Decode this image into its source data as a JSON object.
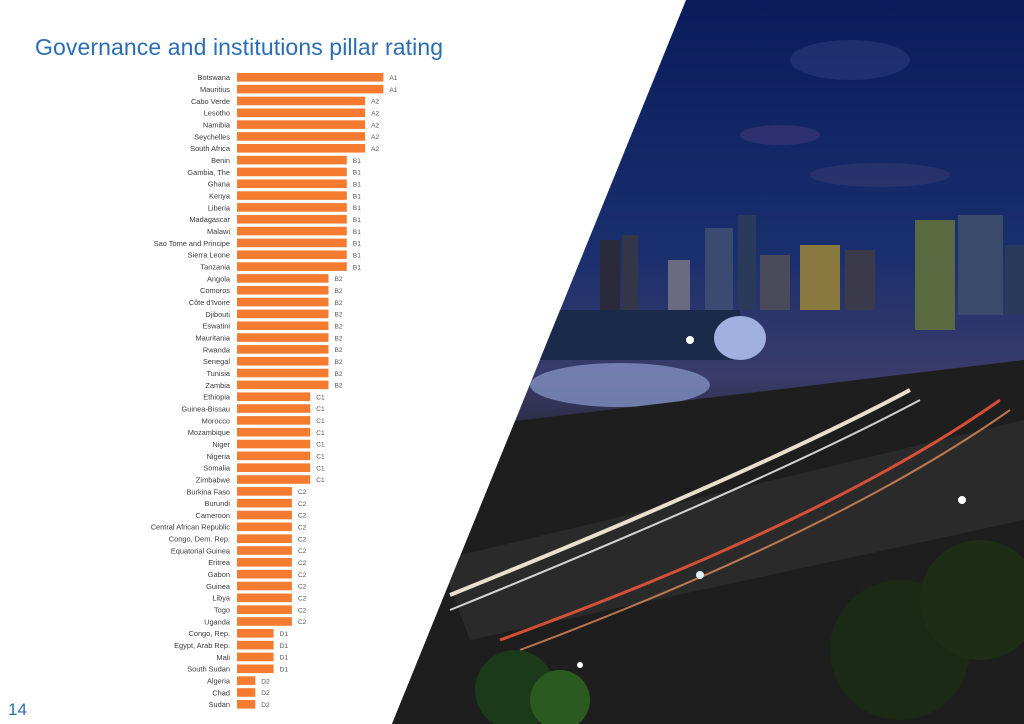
{
  "page": {
    "title": "Governance and institutions pillar rating",
    "page_number": "14"
  },
  "colors": {
    "bar": "#f47b30",
    "title": "#2a6db5"
  },
  "chart_data": {
    "type": "bar",
    "orientation": "horizontal",
    "title": "Governance and institutions pillar rating",
    "scale": [
      "D2",
      "D1",
      "C2",
      "C1",
      "B2",
      "B1",
      "A2",
      "A1"
    ],
    "categories": [
      "Botswana",
      "Mauritius",
      "Cabo Verde",
      "Lesotho",
      "Namibia",
      "Seychelles",
      "South Africa",
      "Benin",
      "Gambia, The",
      "Ghana",
      "Kenya",
      "Liberia",
      "Madagascar",
      "Malawi",
      "Sao Tome and Principe",
      "Sierra Leone",
      "Tanzania",
      "Angola",
      "Comoros",
      "Côte d'Ivoire",
      "Djibouti",
      "Eswatini",
      "Mauritania",
      "Rwanda",
      "Senegal",
      "Tunisia",
      "Zambia",
      "Ethiopia",
      "Guinea-Bissau",
      "Morocco",
      "Mozambique",
      "Niger",
      "Nigeria",
      "Somalia",
      "Zimbabwe",
      "Burkina Faso",
      "Burundi",
      "Cameroon",
      "Central African Republic",
      "Congo, Dem. Rep.",
      "Equatorial Guinea",
      "Eritrea",
      "Gabon",
      "Guinea",
      "Libya",
      "Togo",
      "Uganda",
      "Congo, Rep.",
      "Egypt, Arab Rep.",
      "Mali",
      "South Sudan",
      "Algeria",
      "Chad",
      "Sudan"
    ],
    "ratings": [
      "A1",
      "A1",
      "A2",
      "A2",
      "A2",
      "A2",
      "A2",
      "B1",
      "B1",
      "B1",
      "B1",
      "B1",
      "B1",
      "B1",
      "B1",
      "B1",
      "B1",
      "B2",
      "B2",
      "B2",
      "B2",
      "B2",
      "B2",
      "B2",
      "B2",
      "B2",
      "B2",
      "C1",
      "C1",
      "C1",
      "C1",
      "C1",
      "C1",
      "C1",
      "C1",
      "C2",
      "C2",
      "C2",
      "C2",
      "C2",
      "C2",
      "C2",
      "C2",
      "C2",
      "C2",
      "C2",
      "C2",
      "D1",
      "D1",
      "D1",
      "D1",
      "D2",
      "D2",
      "D2"
    ],
    "values": [
      8,
      8,
      7,
      7,
      7,
      7,
      7,
      6,
      6,
      6,
      6,
      6,
      6,
      6,
      6,
      6,
      6,
      5,
      5,
      5,
      5,
      5,
      5,
      5,
      5,
      5,
      5,
      4,
      4,
      4,
      4,
      4,
      4,
      4,
      4,
      3,
      3,
      3,
      3,
      3,
      3,
      3,
      3,
      3,
      3,
      3,
      3,
      2,
      2,
      2,
      2,
      1,
      1,
      1
    ],
    "xlim": [
      0,
      8
    ],
    "grid": false,
    "legend": "none"
  }
}
